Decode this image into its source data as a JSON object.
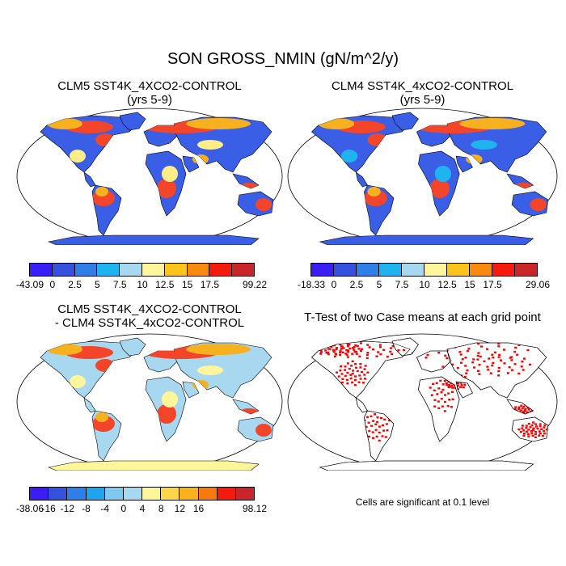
{
  "title": "SON GROSS_NMIN (gN/m^2/y)",
  "colors": {
    "ocean": "#ffffff",
    "coast": "#000000",
    "sig": "#ff0000"
  },
  "panels": [
    {
      "id": "p1",
      "title_line1": "CLM5 SST4K_4XCO2-CONTROL",
      "title_line2": "(yrs 5-9)",
      "land_color": "#3a5fe6",
      "antarctica_color": "#3a5fe6",
      "hotspot_colors": [
        "#f2452a",
        "#f7b01e",
        "#ffee88"
      ],
      "colorbar": {
        "colors": [
          "#3a1ef5",
          "#3650e0",
          "#2f7fe8",
          "#1fb4f0",
          "#a8d8f0",
          "#fff59a",
          "#fbc51c",
          "#f88a0f",
          "#f41a0e",
          "#c8262b"
        ],
        "tick_labels": [
          "-43.09",
          "0",
          "2.5",
          "5",
          "7.5",
          "10",
          "12.5",
          "15",
          "17.5",
          "99.22"
        ]
      }
    },
    {
      "id": "p2",
      "title_line1": "CLM4 SST4K_4xCO2-CONTROL",
      "title_line2": "(yrs 5-9)",
      "land_color": "#3a5fe6",
      "antarctica_color": "#3a5fe6",
      "hotspot_colors": [
        "#f2452a",
        "#f7b01e",
        "#1fb4f0"
      ],
      "colorbar": {
        "colors": [
          "#3a1ef5",
          "#3650e0",
          "#2f7fe8",
          "#1fb4f0",
          "#a8d8f0",
          "#fff59a",
          "#fbc51c",
          "#f88a0f",
          "#f41a0e",
          "#c8262b"
        ],
        "tick_labels": [
          "-18.33",
          "0",
          "2.5",
          "5",
          "7.5",
          "10",
          "12.5",
          "15",
          "17.5",
          "29.06"
        ]
      }
    },
    {
      "id": "p3",
      "title_line1": "CLM5 SST4K_4XCO2-CONTROL",
      "title_line2": "- CLM4 SST4K_4xCO2-CONTROL",
      "land_color": "#a8d8f0",
      "antarctica_color": "#fff59a",
      "hotspot_colors": [
        "#f2452a",
        "#f7b01e",
        "#fff59a"
      ],
      "colorbar": {
        "colors": [
          "#3a1ef5",
          "#3650e0",
          "#2f7fe8",
          "#1fa5f0",
          "#7fc8f0",
          "#a8d8f0",
          "#fff59a",
          "#fcd748",
          "#fbb11c",
          "#f87a0f",
          "#f41a0e",
          "#c8262b"
        ],
        "tick_labels": [
          "-38.06",
          "-16",
          "-12",
          "-8",
          "-4",
          "0",
          "4",
          "8",
          "12",
          "16",
          "98.12"
        ]
      }
    },
    {
      "id": "p4",
      "title_line1": "T-Test of two Case means at each grid point",
      "note": "Cells are significant at 0.1 level"
    }
  ]
}
